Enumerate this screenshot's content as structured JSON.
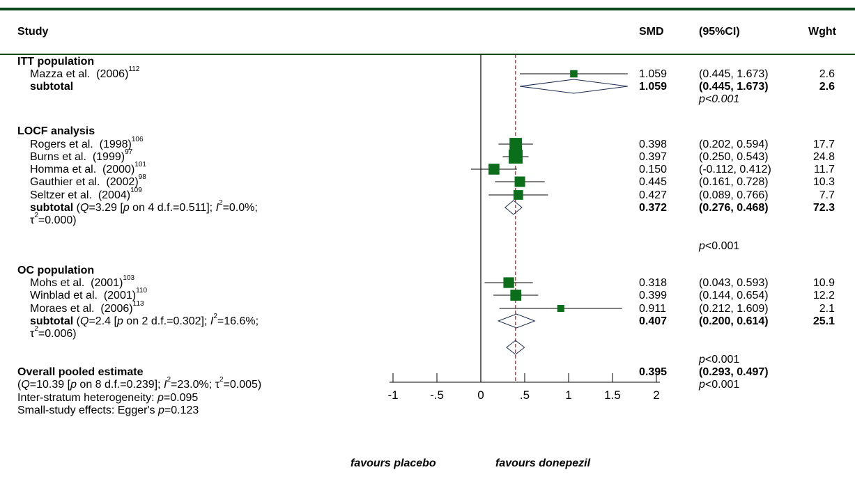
{
  "header": {
    "study": "Study",
    "smd": "SMD",
    "ci": "(95%CI)",
    "weight": "Wght"
  },
  "colors": {
    "rule": "#0a4a1c",
    "box": "#0a6e1a",
    "diamond": "#1b2b4e",
    "null_line": "#a02020"
  },
  "groups": [
    {
      "title": "ITT population",
      "studies": [
        {
          "author": "Mazza et al.",
          "year": "(2006)",
          "ref": "112",
          "smd": "1.059",
          "ci": "(0.445, 1.673)",
          "weight": "2.6"
        }
      ],
      "subtotal": {
        "label": "subtotal",
        "stats_pre": "",
        "stats_line2": "",
        "smd": "1.059",
        "ci": "(0.445, 1.673)",
        "weight": "2.6",
        "p": "<0.001"
      }
    },
    {
      "title": "LOCF analysis",
      "studies": [
        {
          "author": "Rogers et al.",
          "year": "(1998)",
          "ref": "106",
          "smd": "0.398",
          "ci": "(0.202, 0.594)",
          "weight": "17.7"
        },
        {
          "author": "Burns et al.",
          "year": "(1999)",
          "ref": "97",
          "smd": "0.397",
          "ci": "(0.250, 0.543)",
          "weight": "24.8"
        },
        {
          "author": "Homma et al.",
          "year": "(2000)",
          "ref": "101",
          "smd": "0.150",
          "ci": "(-0.112, 0.412)",
          "weight": "11.7"
        },
        {
          "author": "Gauthier et al.",
          "year": "(2002)",
          "ref": "98",
          "smd": "0.445",
          "ci": "(0.161, 0.728)",
          "weight": "10.3"
        },
        {
          "author": "Seltzer et al.",
          "year": "(2004)",
          "ref": "109",
          "smd": "0.427",
          "ci": "(0.089, 0.766)",
          "weight": "7.7"
        }
      ],
      "subtotal": {
        "label": "subtotal",
        "q": "3.29",
        "df": "4",
        "pq": "0.511",
        "i2": "0.0%",
        "tau2": "0.000",
        "smd": "0.372",
        "ci": "(0.276, 0.468)",
        "weight": "72.3",
        "p": "<0.001"
      }
    },
    {
      "title": "OC population",
      "studies": [
        {
          "author": "Mohs et al.",
          "year": "(2001)",
          "ref": "103",
          "smd": "0.318",
          "ci": "(0.043, 0.593)",
          "weight": "10.9"
        },
        {
          "author": "Winblad et al.",
          "year": "(2001)",
          "ref": "110",
          "smd": "0.399",
          "ci": "(0.144, 0.654)",
          "weight": "12.2"
        },
        {
          "author": "Moraes et al.",
          "year": "(2006)",
          "ref": "113",
          "smd": "0.911",
          "ci": "(0.212, 1.609)",
          "weight": "2.1"
        }
      ],
      "subtotal": {
        "label": "subtotal",
        "q": "2.4",
        "df": "2",
        "pq": "0.302",
        "i2": "16.6%",
        "tau2": "0.006",
        "smd": "0.407",
        "ci": "(0.200, 0.614)",
        "weight": "25.1",
        "p": "<0.001"
      }
    }
  ],
  "overall": {
    "label": "Overall pooled estimate",
    "q": "10.39",
    "df": "8",
    "pq": "0.239",
    "i2": "23.0%",
    "tau2": "0.005",
    "smd": "0.395",
    "ci": "(0.293, 0.497)",
    "p": "<0.001",
    "inter_stratum": "Inter-stratum heterogeneity:",
    "inter_p": "0.095",
    "small_study": "Small-study effects: Egger's",
    "egger_p": "0.123"
  },
  "footer": {
    "left": "favours placebo",
    "right": "favours donepezil"
  },
  "chart_data": {
    "type": "forest",
    "x_ticks": [
      {
        "value": -1,
        "label": "-1"
      },
      {
        "value": -0.5,
        "label": "-.5"
      },
      {
        "value": 0,
        "label": "0"
      },
      {
        "value": 0.5,
        "label": ".5"
      },
      {
        "value": 1,
        "label": "1"
      },
      {
        "value": 1.5,
        "label": "1.5"
      },
      {
        "value": 2,
        "label": "2"
      }
    ],
    "xlim": [
      -1,
      2
    ],
    "null_value": 0,
    "pooled_value": 0.395,
    "studies": [
      {
        "name": "Mazza et al. (2006)",
        "est": 1.059,
        "lo": 0.445,
        "hi": 1.673,
        "weight": 2.6
      },
      {
        "name": "Rogers et al. (1998)",
        "est": 0.398,
        "lo": 0.202,
        "hi": 0.594,
        "weight": 17.7
      },
      {
        "name": "Burns et al. (1999)",
        "est": 0.397,
        "lo": 0.25,
        "hi": 0.543,
        "weight": 24.8
      },
      {
        "name": "Homma et al. (2000)",
        "est": 0.15,
        "lo": -0.112,
        "hi": 0.412,
        "weight": 11.7
      },
      {
        "name": "Gauthier et al. (2002)",
        "est": 0.445,
        "lo": 0.161,
        "hi": 0.728,
        "weight": 10.3
      },
      {
        "name": "Seltzer et al. (2004)",
        "est": 0.427,
        "lo": 0.089,
        "hi": 0.766,
        "weight": 7.7
      },
      {
        "name": "Mohs et al. (2001)",
        "est": 0.318,
        "lo": 0.043,
        "hi": 0.593,
        "weight": 10.9
      },
      {
        "name": "Winblad et al. (2001)",
        "est": 0.399,
        "lo": 0.144,
        "hi": 0.654,
        "weight": 12.2
      },
      {
        "name": "Moraes et al. (2006)",
        "est": 0.911,
        "lo": 0.212,
        "hi": 1.609,
        "weight": 2.1
      }
    ],
    "subtotals": [
      {
        "name": "ITT population subtotal",
        "est": 1.059,
        "lo": 0.445,
        "hi": 1.673
      },
      {
        "name": "LOCF analysis subtotal",
        "est": 0.372,
        "lo": 0.276,
        "hi": 0.468
      },
      {
        "name": "OC population subtotal",
        "est": 0.407,
        "lo": 0.2,
        "hi": 0.614
      }
    ],
    "overall": {
      "est": 0.395,
      "lo": 0.293,
      "hi": 0.497
    }
  }
}
